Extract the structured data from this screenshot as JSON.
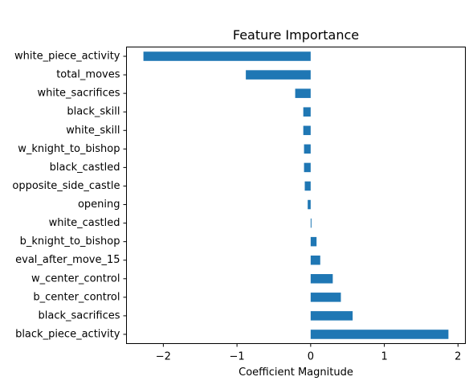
{
  "chart_data": {
    "type": "bar",
    "orientation": "horizontal",
    "title": "Feature Importance",
    "xlabel": "Coefficient Magnitude",
    "ylabel": "",
    "xlim": [
      -2.5,
      2.1
    ],
    "xticks": [
      -2,
      -1,
      0,
      1,
      2
    ],
    "xtick_labels": [
      "−2",
      "−1",
      "0",
      "1",
      "2"
    ],
    "bar_color": "#1f77b4",
    "grid": false,
    "legend": "none",
    "categories": [
      "black_piece_activity",
      "black_sacrifices",
      "b_center_control",
      "w_center_control",
      "eval_after_move_15",
      "b_knight_to_bishop",
      "white_castled",
      "opening",
      "opposite_side_castle",
      "black_castled",
      "w_knight_to_bishop",
      "white_skill",
      "black_skill",
      "white_sacrifices",
      "total_moves",
      "white_piece_activity"
    ],
    "values": [
      1.87,
      0.57,
      0.41,
      0.3,
      0.13,
      0.08,
      0.01,
      -0.04,
      -0.08,
      -0.09,
      -0.09,
      -0.1,
      -0.1,
      -0.21,
      -0.88,
      -2.27
    ]
  }
}
